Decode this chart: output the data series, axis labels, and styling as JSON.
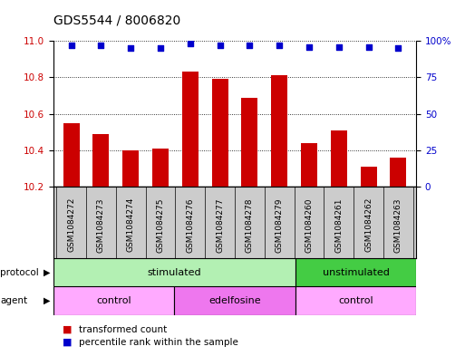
{
  "title": "GDS5544 / 8006820",
  "samples": [
    "GSM1084272",
    "GSM1084273",
    "GSM1084274",
    "GSM1084275",
    "GSM1084276",
    "GSM1084277",
    "GSM1084278",
    "GSM1084279",
    "GSM1084260",
    "GSM1084261",
    "GSM1084262",
    "GSM1084263"
  ],
  "bar_values": [
    10.55,
    10.49,
    10.4,
    10.41,
    10.83,
    10.79,
    10.69,
    10.81,
    10.44,
    10.51,
    10.31,
    10.36
  ],
  "percentile_values": [
    97,
    97,
    95,
    95,
    98,
    97,
    97,
    97,
    96,
    96,
    96,
    95
  ],
  "bar_color": "#cc0000",
  "percentile_color": "#0000cc",
  "ylim_left": [
    10.2,
    11.0
  ],
  "ylim_right": [
    0,
    100
  ],
  "yticks_left": [
    10.2,
    10.4,
    10.6,
    10.8,
    11.0
  ],
  "yticks_right": [
    0,
    25,
    50,
    75,
    100
  ],
  "protocol_groups": [
    {
      "label": "stimulated",
      "start": 0,
      "end": 7,
      "color": "#b3f0b3"
    },
    {
      "label": "unstimulated",
      "start": 8,
      "end": 11,
      "color": "#44cc44"
    }
  ],
  "agent_groups": [
    {
      "label": "control",
      "start": 0,
      "end": 3,
      "color": "#ffaaff"
    },
    {
      "label": "edelfosine",
      "start": 4,
      "end": 7,
      "color": "#ee77ee"
    },
    {
      "label": "control",
      "start": 8,
      "end": 11,
      "color": "#ffaaff"
    }
  ],
  "legend_items": [
    {
      "label": "transformed count",
      "color": "#cc0000"
    },
    {
      "label": "percentile rank within the sample",
      "color": "#0000cc"
    }
  ],
  "bg_color": "#ffffff",
  "tick_bg_color": "#cccccc",
  "bar_width": 0.55,
  "figsize": [
    5.13,
    3.93
  ],
  "dpi": 100
}
